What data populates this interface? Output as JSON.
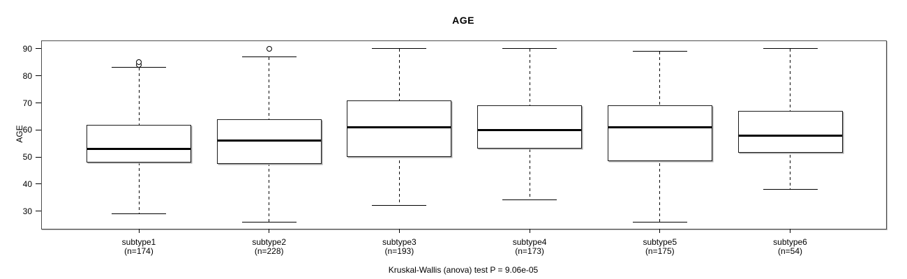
{
  "chart_data": {
    "type": "boxplot",
    "title": "AGE",
    "ylabel": "AGE",
    "xlabel": "",
    "caption": "Kruskal-Wallis (anova) test P = 9.06e-05",
    "yticks": [
      30,
      40,
      50,
      60,
      70,
      80,
      90
    ],
    "ylim": [
      23.5,
      92.8
    ],
    "grid": false,
    "groups": [
      {
        "label": "subtype1",
        "sublabel": "(n=174)",
        "n": 174,
        "whisker_low": 29,
        "q1": 48,
        "median": 53,
        "q3": 62,
        "whisker_high": 83,
        "outliers": [
          84,
          85
        ]
      },
      {
        "label": "subtype2",
        "sublabel": "(n=228)",
        "n": 228,
        "whisker_low": 26,
        "q1": 47.5,
        "median": 56,
        "q3": 64,
        "whisker_high": 87,
        "outliers": [
          90
        ]
      },
      {
        "label": "subtype3",
        "sublabel": "(n=193)",
        "n": 193,
        "whisker_low": 32,
        "q1": 50,
        "median": 61,
        "q3": 71,
        "whisker_high": 90,
        "outliers": []
      },
      {
        "label": "subtype4",
        "sublabel": "(n=173)",
        "n": 173,
        "whisker_low": 34,
        "q1": 53,
        "median": 60,
        "q3": 69,
        "whisker_high": 90,
        "outliers": []
      },
      {
        "label": "subtype5",
        "sublabel": "(n=175)",
        "n": 175,
        "whisker_low": 26,
        "q1": 48.5,
        "median": 61,
        "q3": 69,
        "whisker_high": 89,
        "outliers": []
      },
      {
        "label": "subtype6",
        "sublabel": "(n=54)",
        "n": 54,
        "whisker_low": 38,
        "q1": 51.5,
        "median": 58,
        "q3": 67,
        "whisker_high": 90,
        "outliers": []
      }
    ]
  },
  "colors": {
    "stroke": "#000000",
    "box_fill": "#ffffff",
    "background": "#ffffff",
    "frame": "#4d4d4d"
  }
}
